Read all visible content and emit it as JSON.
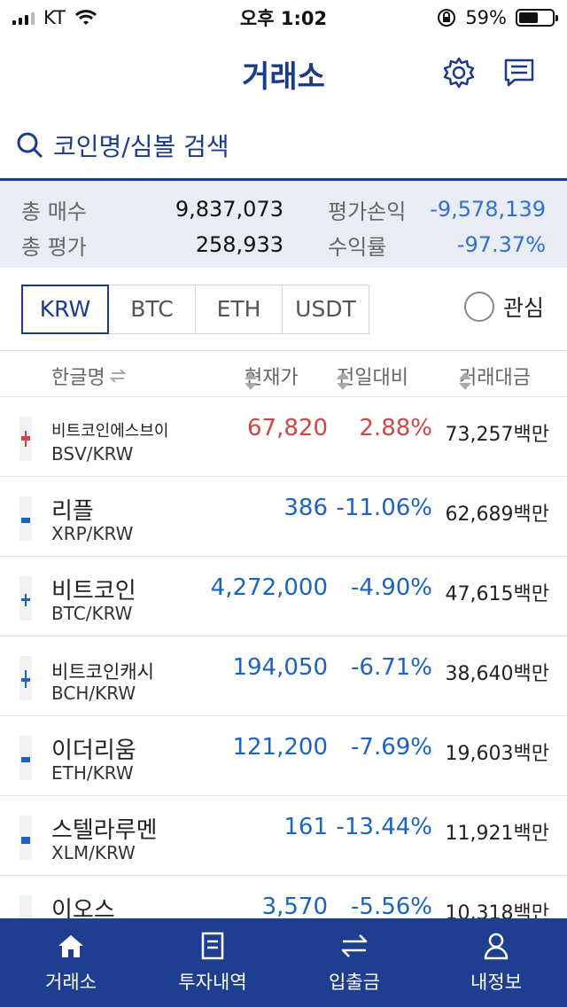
{
  "status_bar": {
    "carrier": "KT",
    "time": "오후 1:02",
    "battery": "59%",
    "battery_level": 0.59
  },
  "header": {
    "title": "거래소",
    "icons": [
      "gear-icon",
      "chat-icon"
    ]
  },
  "search": {
    "placeholder": "코인명/심볼 검색"
  },
  "summary": {
    "total_buy_label": "총 매수",
    "total_buy": "9,837,073",
    "total_eval_label": "총 평가",
    "total_eval": "258,933",
    "pnl_label": "평가손익",
    "pnl": "-9,578,139",
    "yield_label": "수익률",
    "yield": "-97.37%"
  },
  "tabs": [
    "KRW",
    "BTC",
    "ETH",
    "USDT"
  ],
  "active_tab": "KRW",
  "favorite_label": "관심",
  "columns": {
    "name": "한글명",
    "price": "현재가",
    "change": "전일대비",
    "volume": "거래대금"
  },
  "coins": [
    {
      "name": "비트코인에스브이",
      "symbol": "BSV/KRW",
      "price": "67,820",
      "change": "2.88%",
      "volume": "73,257백만",
      "direction": "up",
      "color": "#d24545"
    },
    {
      "name": "리플",
      "symbol": "XRP/KRW",
      "price": "386",
      "change": "-11.06%",
      "volume": "62,689백만",
      "direction": "down",
      "color": "#1a63c4"
    },
    {
      "name": "비트코인",
      "symbol": "BTC/KRW",
      "price": "4,272,000",
      "change": "-4.90%",
      "volume": "47,615백만",
      "direction": "down",
      "color": "#1a63c4"
    },
    {
      "name": "비트코인캐시",
      "symbol": "BCH/KRW",
      "price": "194,050",
      "change": "-6.71%",
      "volume": "38,640백만",
      "direction": "down",
      "color": "#1a63c4"
    },
    {
      "name": "이더리움",
      "symbol": "ETH/KRW",
      "price": "121,200",
      "change": "-7.69%",
      "volume": "19,603백만",
      "direction": "down",
      "color": "#1a63c4"
    },
    {
      "name": "스텔라루멘",
      "symbol": "XLM/KRW",
      "price": "161",
      "change": "-13.44%",
      "volume": "11,921백만",
      "direction": "down",
      "color": "#1a63c4"
    },
    {
      "name": "이오스",
      "symbol": "",
      "price": "3,570",
      "change": "-5.56%",
      "volume": "10,318백만",
      "direction": "down",
      "color": "#1a63c4"
    }
  ],
  "bottom_nav": [
    {
      "label": "거래소",
      "icon": "home-icon"
    },
    {
      "label": "투자내역",
      "icon": "document-icon"
    },
    {
      "label": "입출금",
      "icon": "transfer-icon"
    },
    {
      "label": "내정보",
      "icon": "user-icon"
    }
  ]
}
